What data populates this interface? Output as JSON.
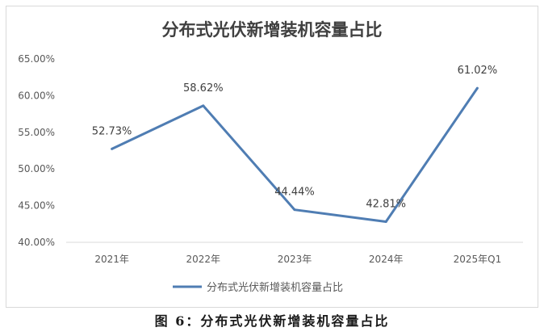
{
  "chart_data": {
    "type": "line",
    "title": "分布式光伏新增装机容量占比",
    "categories": [
      "2021年",
      "2022年",
      "2023年",
      "2024年",
      "2025年Q1"
    ],
    "series": [
      {
        "name": "分布式光伏新增装机容量占比",
        "values": [
          52.73,
          58.62,
          44.44,
          42.81,
          61.02
        ],
        "color": "#4f7db3"
      }
    ],
    "data_labels": [
      "52.73%",
      "58.62%",
      "44.44%",
      "42.81%",
      "61.02%"
    ],
    "y_ticks": [
      "40.00%",
      "45.00%",
      "50.00%",
      "55.00%",
      "60.00%",
      "65.00%"
    ],
    "ylim": [
      40,
      65
    ],
    "grid": false,
    "legend_position": "bottom",
    "xlabel": "",
    "ylabel": ""
  },
  "caption": "图 6：分布式光伏新增装机容量占比"
}
